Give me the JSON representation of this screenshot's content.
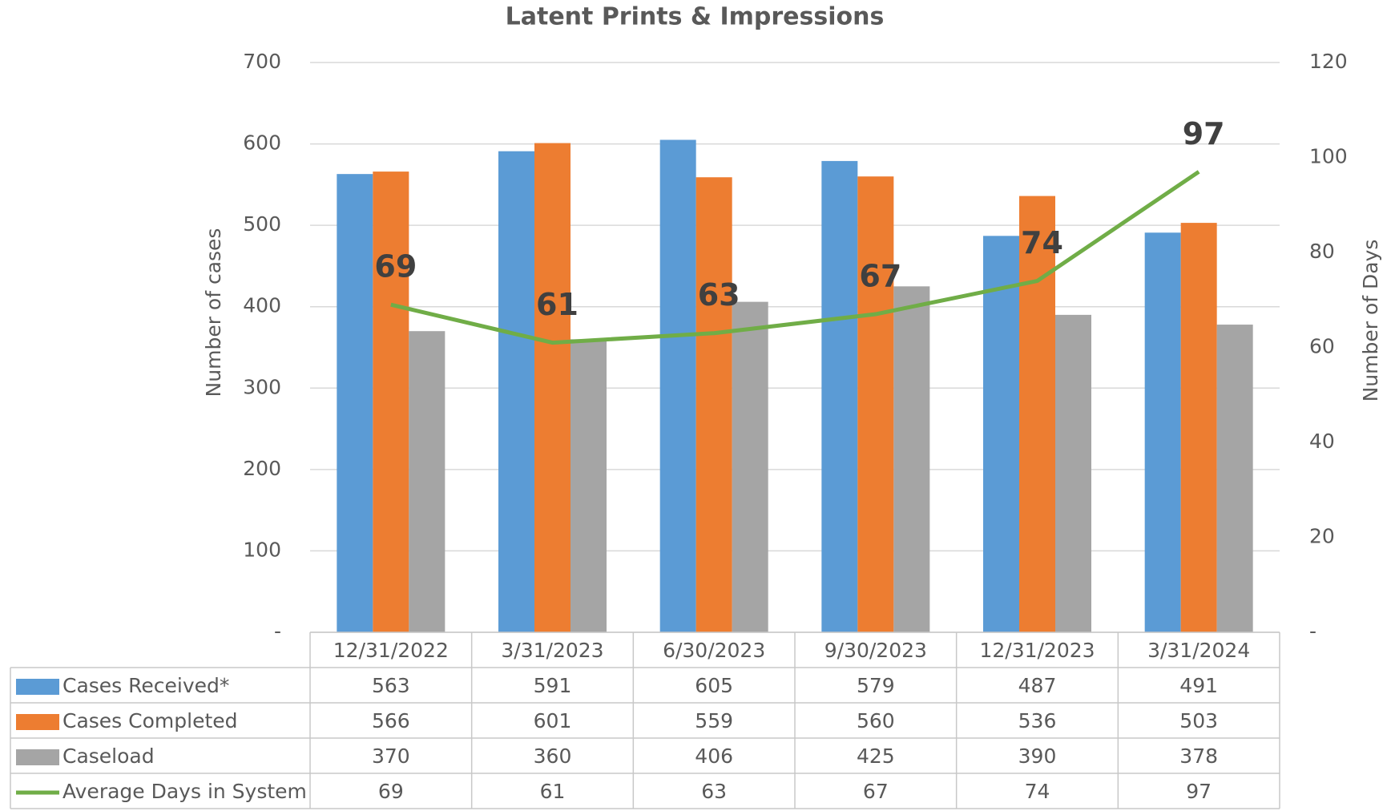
{
  "chart_data": {
    "type": "bar",
    "title": "Latent Prints & Impressions",
    "ylabel": "Number of cases",
    "y2label": "Number of Days",
    "categories": [
      "12/31/2022",
      "3/31/2023",
      "6/30/2023",
      "9/30/2023",
      "12/31/2023",
      "3/31/2024"
    ],
    "series": [
      {
        "name": "Cases Received*",
        "color": "#5b9bd5",
        "values": [
          563,
          591,
          605,
          579,
          487,
          491
        ]
      },
      {
        "name": "Cases Completed",
        "color": "#ed7d31",
        "values": [
          566,
          601,
          559,
          560,
          536,
          503
        ]
      },
      {
        "name": "Caseload",
        "color": "#a5a5a5",
        "values": [
          370,
          360,
          406,
          425,
          390,
          378
        ]
      },
      {
        "name": "Average Days in System",
        "color": "#70ad47",
        "type": "line",
        "axis": "y2",
        "values": [
          69,
          61,
          63,
          67,
          74,
          97
        ]
      }
    ],
    "ylim": [
      0,
      700
    ],
    "yticks": [
      {
        "value": 0,
        "label": "-"
      },
      100,
      200,
      300,
      400,
      500,
      600,
      700
    ],
    "y2lim": [
      0,
      120
    ],
    "y2ticks": [
      {
        "value": 0,
        "label": "-"
      },
      20,
      40,
      60,
      80,
      100,
      120
    ],
    "grid": true,
    "data_table": true
  }
}
